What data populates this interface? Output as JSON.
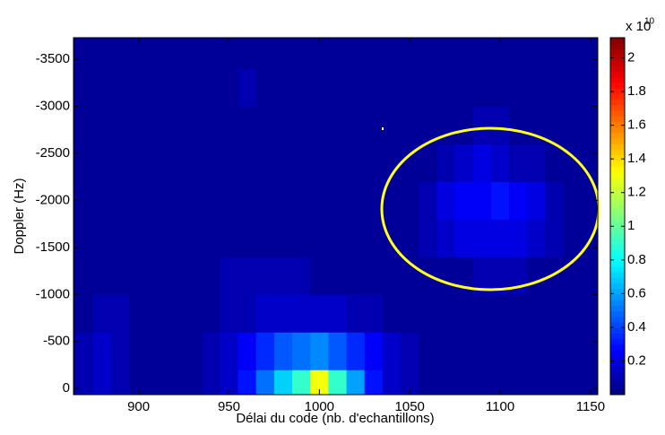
{
  "chart_data": {
    "type": "heatmap",
    "x_label": "Délai du code (nb. d'echantillons)",
    "y_label": "Doppler (Hz)",
    "colorbar_label": "x 10",
    "colorbar_exponent": "10",
    "x": [
      870,
      880,
      890,
      900,
      910,
      920,
      930,
      940,
      950,
      960,
      970,
      980,
      990,
      1000,
      1010,
      1020,
      1030,
      1040,
      1050,
      1060,
      1070,
      1080,
      1090,
      1100,
      1110,
      1120,
      1130,
      1140,
      1150
    ],
    "y": [
      0,
      -400,
      -800,
      -1200,
      -1600,
      -2000,
      -2400,
      -2800,
      -3200,
      -3600
    ],
    "z": [
      [
        0.1,
        0.15,
        0.1,
        0.05,
        0.05,
        0.05,
        0.05,
        0.1,
        0.15,
        0.3,
        0.5,
        0.7,
        0.9,
        1.3,
        0.9,
        0.6,
        0.3,
        0.15,
        0.1,
        0.05,
        0.05,
        0.05,
        0.05,
        0.05,
        0.05,
        0.05,
        0.05,
        0.05,
        0.05
      ],
      [
        0.1,
        0.15,
        0.1,
        0.05,
        0.05,
        0.05,
        0.05,
        0.1,
        0.15,
        0.25,
        0.35,
        0.45,
        0.5,
        0.55,
        0.45,
        0.35,
        0.25,
        0.15,
        0.1,
        0.05,
        0.05,
        0.05,
        0.05,
        0.05,
        0.05,
        0.05,
        0.05,
        0.05,
        0.05
      ],
      [
        0.05,
        0.1,
        0.1,
        0.05,
        0.05,
        0.05,
        0.05,
        0.05,
        0.1,
        0.1,
        0.15,
        0.15,
        0.15,
        0.15,
        0.15,
        0.1,
        0.1,
        0.05,
        0.05,
        0.05,
        0.05,
        0.05,
        0.05,
        0.05,
        0.05,
        0.05,
        0.05,
        0.05,
        0.05
      ],
      [
        0.05,
        0.05,
        0.05,
        0.05,
        0.05,
        0.05,
        0.05,
        0.05,
        0.1,
        0.1,
        0.1,
        0.1,
        0.1,
        0.05,
        0.05,
        0.05,
        0.05,
        0.05,
        0.05,
        0.05,
        0.05,
        0.05,
        0.1,
        0.1,
        0.1,
        0.05,
        0.05,
        0.05,
        0.05
      ],
      [
        0.05,
        0.05,
        0.05,
        0.05,
        0.05,
        0.05,
        0.05,
        0.05,
        0.05,
        0.05,
        0.05,
        0.05,
        0.05,
        0.05,
        0.05,
        0.05,
        0.05,
        0.05,
        0.05,
        0.1,
        0.15,
        0.2,
        0.2,
        0.2,
        0.2,
        0.15,
        0.1,
        0.05,
        0.05
      ],
      [
        0.05,
        0.05,
        0.05,
        0.05,
        0.05,
        0.05,
        0.05,
        0.05,
        0.05,
        0.05,
        0.05,
        0.05,
        0.05,
        0.05,
        0.05,
        0.05,
        0.05,
        0.05,
        0.05,
        0.1,
        0.2,
        0.25,
        0.25,
        0.3,
        0.25,
        0.2,
        0.1,
        0.05,
        0.05
      ],
      [
        0.05,
        0.05,
        0.05,
        0.05,
        0.05,
        0.05,
        0.05,
        0.05,
        0.05,
        0.05,
        0.05,
        0.05,
        0.05,
        0.05,
        0.05,
        0.05,
        0.05,
        0.05,
        0.05,
        0.05,
        0.1,
        0.15,
        0.2,
        0.15,
        0.1,
        0.1,
        0.05,
        0.05,
        0.05
      ],
      [
        0.05,
        0.05,
        0.05,
        0.05,
        0.05,
        0.05,
        0.05,
        0.05,
        0.05,
        0.05,
        0.05,
        0.05,
        0.05,
        0.05,
        0.05,
        0.05,
        0.05,
        0.05,
        0.05,
        0.05,
        0.05,
        0.05,
        0.1,
        0.1,
        0.05,
        0.05,
        0.05,
        0.05,
        0.05
      ],
      [
        0.05,
        0.05,
        0.05,
        0.05,
        0.05,
        0.05,
        0.05,
        0.05,
        0.05,
        0.1,
        0.05,
        0.05,
        0.05,
        0.05,
        0.05,
        0.05,
        0.05,
        0.05,
        0.05,
        0.05,
        0.05,
        0.05,
        0.05,
        0.05,
        0.05,
        0.05,
        0.05,
        0.05,
        0.05
      ],
      [
        0.05,
        0.05,
        0.05,
        0.05,
        0.05,
        0.05,
        0.05,
        0.05,
        0.05,
        0.05,
        0.05,
        0.05,
        0.05,
        0.05,
        0.05,
        0.05,
        0.05,
        0.05,
        0.05,
        0.05,
        0.05,
        0.05,
        0.05,
        0.05,
        0.05,
        0.05,
        0.05,
        0.05,
        0.05
      ]
    ],
    "xlim": [
      864,
      1154
    ],
    "ylim": [
      65,
      -3730
    ],
    "xticks": [
      900,
      950,
      1000,
      1050,
      1100,
      1150
    ],
    "yticks": [
      0,
      -500,
      -1000,
      -1500,
      -2000,
      -2500,
      -3000,
      -3500
    ],
    "clim": [
      0,
      2.12
    ],
    "cticks": [
      0.2,
      0.4,
      0.6,
      0.8,
      1,
      1.2,
      1.4,
      1.6,
      1.8,
      2
    ],
    "colormap": "jet"
  }
}
